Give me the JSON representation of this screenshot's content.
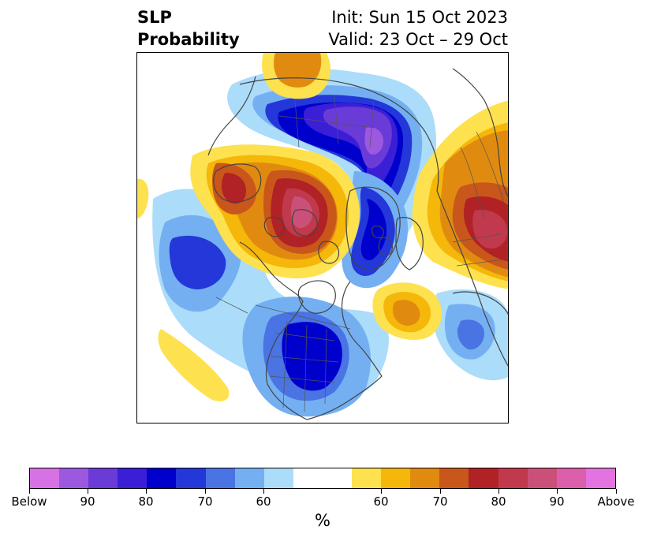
{
  "title": {
    "left_line1": "SLP",
    "left_line2": "Probability",
    "right_line1": "Init: Sun 15 Oct 2023",
    "right_line2": "Valid: 23 Oct – 29 Oct"
  },
  "colorbar": {
    "unit": "%",
    "colors": [
      "#d672e4",
      "#9c58de",
      "#6a3bd7",
      "#3a1fd6",
      "#0000cc",
      "#2437d9",
      "#4a73e3",
      "#74b0f1",
      "#abdcfa",
      "#ffffff",
      "#ffffff",
      "#fee14e",
      "#f4b70a",
      "#e08b10",
      "#c9561b",
      "#b02226",
      "#c0394c",
      "#cb5079",
      "#db5fab",
      "#e373e1"
    ],
    "labels": [
      "Below",
      "90",
      "80",
      "70",
      "60",
      "60",
      "70",
      "80",
      "90",
      "Above"
    ]
  },
  "map": {
    "projection": "north-polar-stereographic",
    "features": [
      "coastlines",
      "country-borders",
      "state-borders"
    ]
  }
}
